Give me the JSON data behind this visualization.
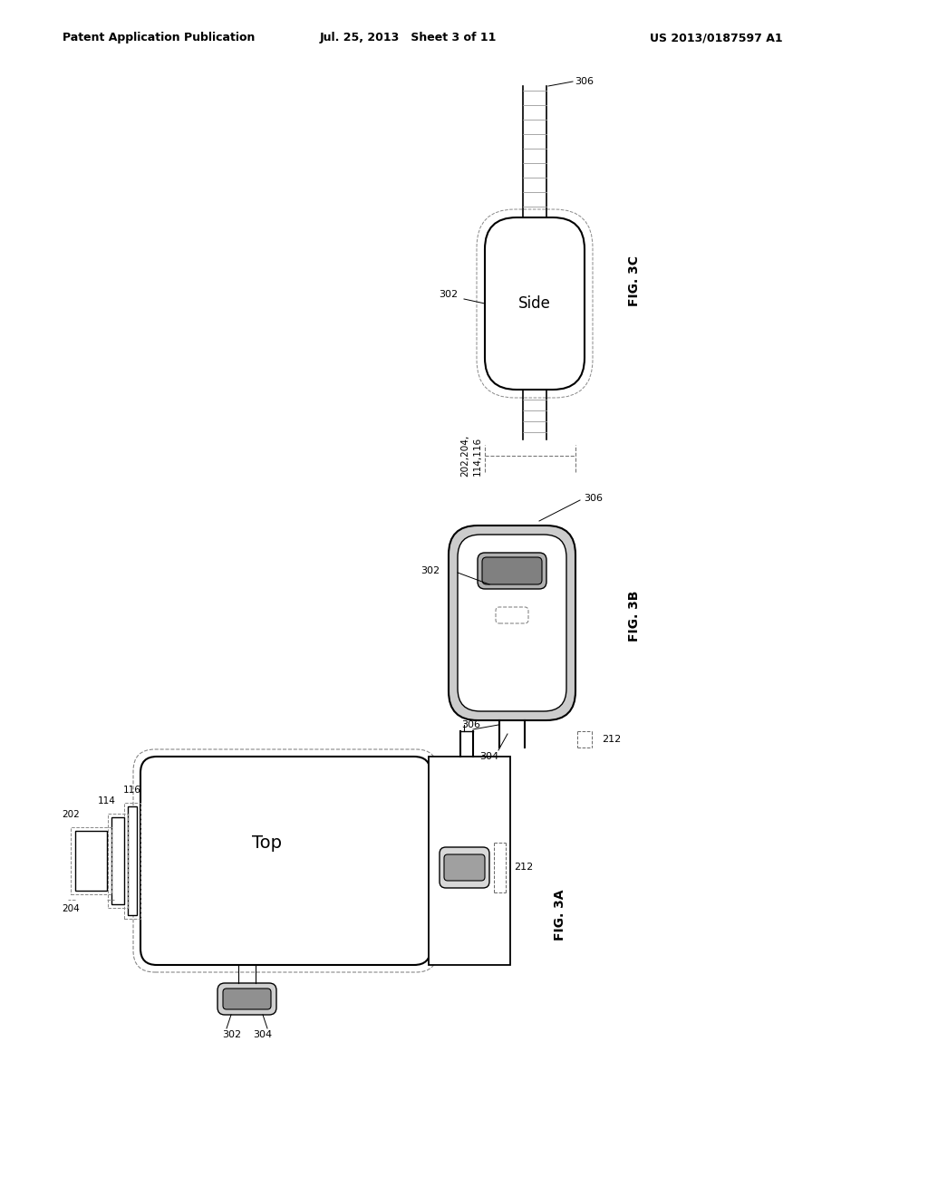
{
  "header_left": "Patent Application Publication",
  "header_mid": "Jul. 25, 2013   Sheet 3 of 11",
  "header_right": "US 2013/0187597 A1",
  "fig3a_label": "FIG. 3A",
  "fig3b_label": "FIG. 3B",
  "fig3c_label": "FIG. 3C",
  "top_label": "Top",
  "side_label": "Side",
  "bg_color": "#ffffff",
  "line_color": "#000000",
  "dashed_color": "#555555"
}
